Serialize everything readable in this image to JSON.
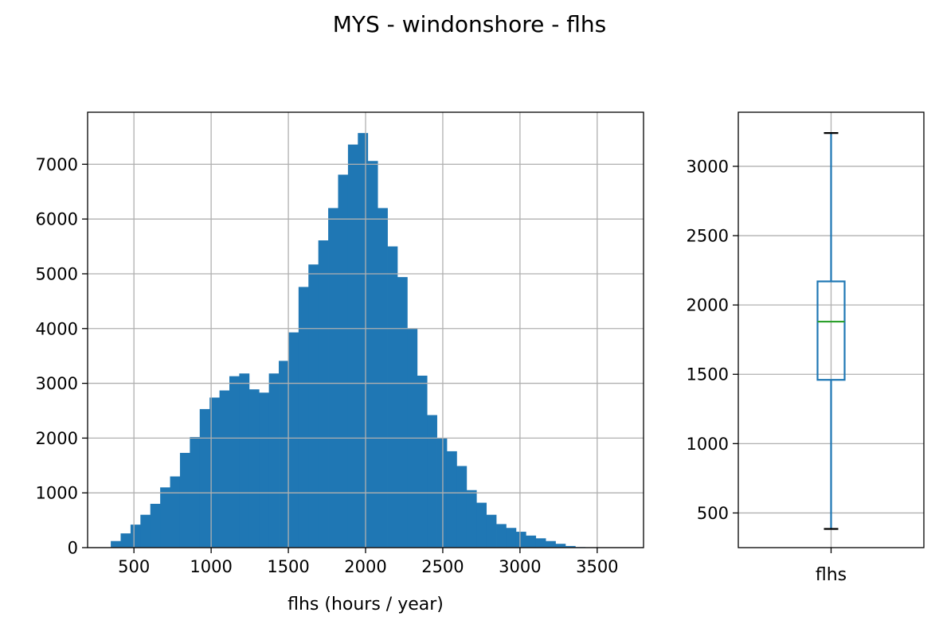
{
  "figure": {
    "title": "MYS - windonshore - flhs"
  },
  "chart_data": [
    {
      "type": "bar",
      "subtype": "histogram",
      "xlabel": "flhs (hours / year)",
      "ylabel": "",
      "xlim": [
        200,
        3800
      ],
      "ylim": [
        0,
        7950
      ],
      "xticks": [
        500,
        1000,
        1500,
        2000,
        2500,
        3000,
        3500
      ],
      "yticks": [
        0,
        1000,
        2000,
        3000,
        4000,
        5000,
        6000,
        7000
      ],
      "grid": true,
      "color": "#1f77b4",
      "bin_width": 64,
      "bin_start": 350,
      "values": [
        120,
        260,
        420,
        600,
        800,
        1100,
        1300,
        1730,
        2020,
        2530,
        2740,
        2870,
        3130,
        3180,
        2890,
        2830,
        3180,
        3410,
        3930,
        4760,
        5170,
        5610,
        6200,
        6810,
        7360,
        7570,
        7060,
        6200,
        5500,
        4940,
        4000,
        3140,
        2420,
        2000,
        1760,
        1490,
        1050,
        820,
        600,
        430,
        360,
        290,
        220,
        170,
        120,
        70,
        30,
        10
      ]
    },
    {
      "type": "box",
      "category": "flhs",
      "ylim": [
        250,
        3390
      ],
      "yticks": [
        500,
        1000,
        1500,
        2000,
        2500,
        3000
      ],
      "grid": true,
      "whisker_low": 385,
      "q1": 1460,
      "median": 1880,
      "q3": 2170,
      "whisker_high": 3240,
      "box_color": "#1f77b4",
      "median_color": "#2ca02c"
    }
  ]
}
